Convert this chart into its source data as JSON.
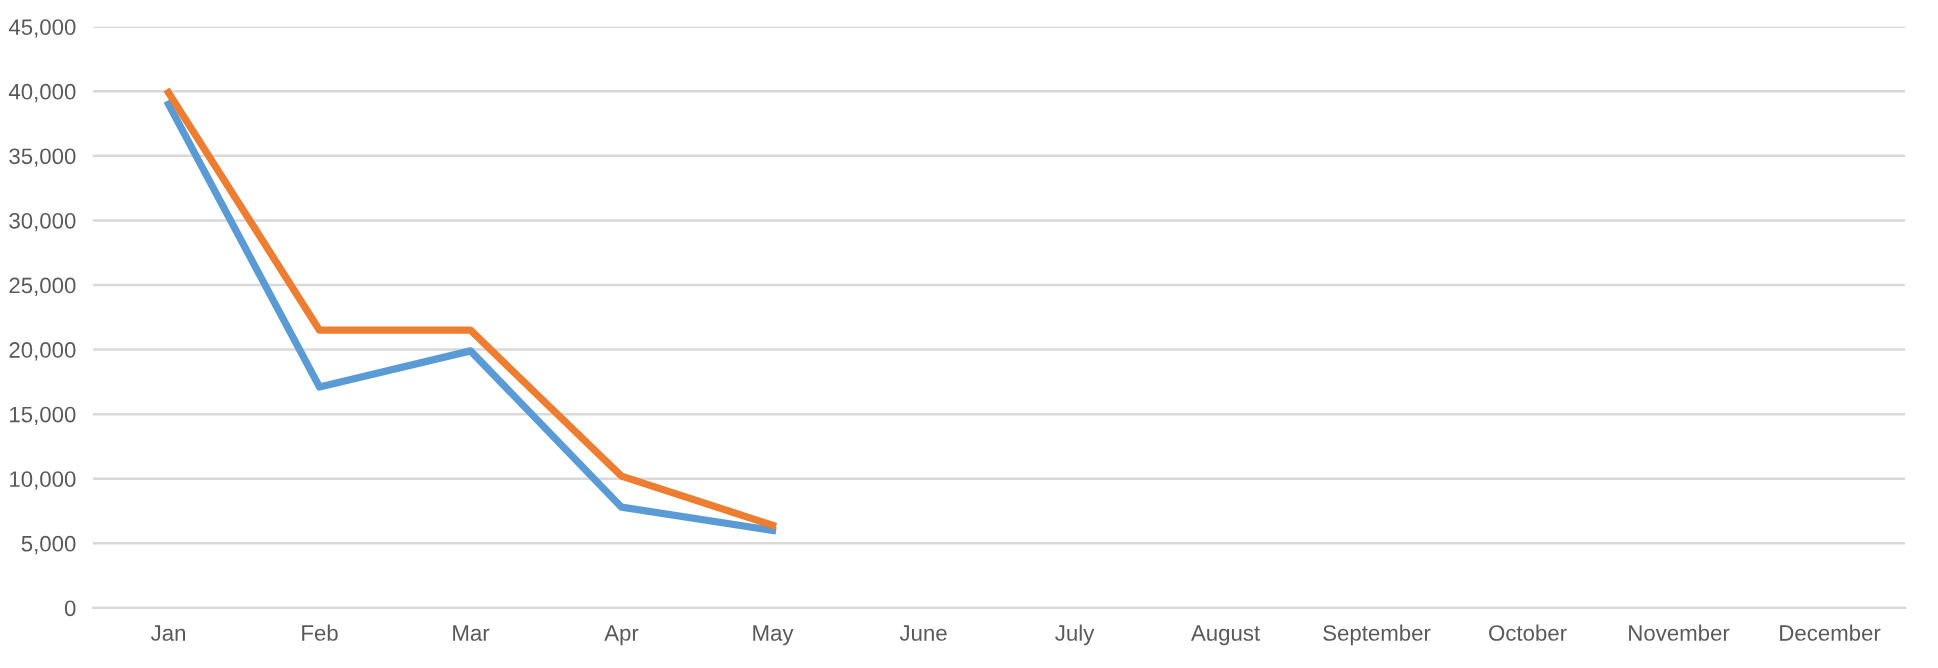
{
  "chart_data": {
    "type": "line",
    "categories": [
      "Jan",
      "Feb",
      "Mar",
      "Apr",
      "May",
      "June",
      "July",
      "August",
      "September",
      "October",
      "November",
      "December"
    ],
    "series": [
      {
        "color": "#5b9bd5",
        "values": [
          39000,
          17100,
          19900,
          7800,
          6000,
          null,
          null,
          null,
          null,
          null,
          null,
          null
        ]
      },
      {
        "color": "#ed7d31",
        "values": [
          39900,
          21500,
          21500,
          10200,
          6400,
          null,
          null,
          null,
          null,
          null,
          null,
          null
        ]
      }
    ],
    "ylim": [
      0,
      45000
    ],
    "yticks": [
      {
        "value": 0,
        "label": "0"
      },
      {
        "value": 5000,
        "label": "5,000"
      },
      {
        "value": 10000,
        "label": "10,000"
      },
      {
        "value": 15000,
        "label": "15,000"
      },
      {
        "value": 20000,
        "label": "20,000"
      },
      {
        "value": 25000,
        "label": "25,000"
      },
      {
        "value": 30000,
        "label": "30,000"
      },
      {
        "value": 35000,
        "label": "35,000"
      },
      {
        "value": 40000,
        "label": "40,000"
      },
      {
        "value": 45000,
        "label": "45,000"
      }
    ],
    "grid": "y",
    "legend": false,
    "marker": "none",
    "line_style": "solid"
  }
}
